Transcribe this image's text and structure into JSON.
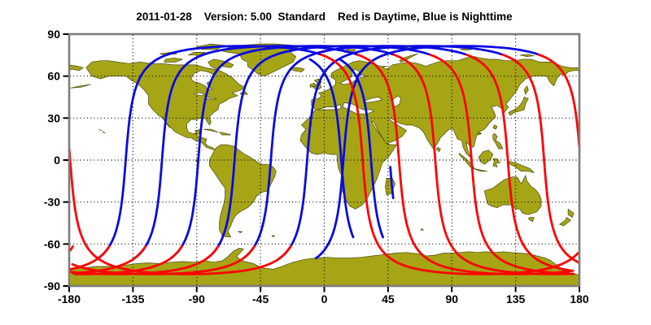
{
  "title": "2011-01-28    Version: 5.00  Standard    Red is Daytime, Blue is Nighttime",
  "header": {
    "date": "2011-01-28",
    "version_label": "Version: 5.00",
    "mode": "Standard",
    "legend_text": "Red is Daytime, Blue is Nighttime"
  },
  "colors": {
    "daytime_track": "#ff0000",
    "nighttime_track": "#0a0ae0",
    "land": "#a6a516",
    "coastline": "#4a4a10",
    "grid": "#000000",
    "frame": "#7d7d7d",
    "tick": "#000000",
    "label_text": "#000000",
    "ocean": "#ffffff"
  },
  "chart_data": {
    "type": "line",
    "title": "2011-01-28    Version: 5.00  Standard    Red is Daytime, Blue is Nighttime",
    "projection": "equirectangular lat/lon world map",
    "xlabel": "",
    "ylabel": "",
    "xlim": [
      -180,
      180
    ],
    "ylim": [
      -90,
      90
    ],
    "x_ticks": [
      -180,
      -135,
      -90,
      -45,
      0,
      45,
      90,
      135,
      180
    ],
    "y_ticks": [
      -90,
      -60,
      -30,
      0,
      30,
      60,
      90
    ],
    "grid": true,
    "legend": {
      "red": "Daytime",
      "blue": "Nighttime"
    },
    "satellite_tracks": {
      "max_latitude_deg": 81.5,
      "lon_drift_deg_per_orbit": 25.6,
      "orbits": [
        {
          "ascending_node_lon": 13.5,
          "segments": [
            {
              "phase": "night",
              "u_deg": [
                -72,
                102
              ]
            },
            {
              "phase": "day",
              "u_deg": [
                102,
                297
              ]
            }
          ]
        },
        {
          "ascending_node_lon": -12.1,
          "segments": [
            {
              "phase": "night",
              "u_deg": [
                -72,
                102
              ]
            },
            {
              "phase": "day",
              "u_deg": [
                102,
                297
              ]
            }
          ]
        },
        {
          "ascending_node_lon": -37.7,
          "segments": [
            {
              "phase": "night",
              "u_deg": [
                -72,
                102
              ]
            },
            {
              "phase": "day",
              "u_deg": [
                102,
                297
              ]
            }
          ]
        },
        {
          "ascending_node_lon": -63.3,
          "segments": [
            {
              "phase": "night",
              "u_deg": [
                -72,
                102
              ]
            },
            {
              "phase": "day",
              "u_deg": [
                102,
                297
              ]
            }
          ]
        },
        {
          "ascending_node_lon": -88.9,
          "segments": [
            {
              "phase": "night",
              "u_deg": [
                -72,
                102
              ]
            },
            {
              "phase": "day",
              "u_deg": [
                102,
                297
              ]
            }
          ]
        },
        {
          "ascending_node_lon": -114.5,
          "segments": [
            {
              "phase": "night",
              "u_deg": [
                -72,
                102
              ]
            },
            {
              "phase": "day",
              "u_deg": [
                102,
                297
              ]
            }
          ]
        },
        {
          "ascending_node_lon": -140.1,
          "segments": [
            {
              "phase": "night",
              "u_deg": [
                -72,
                102
              ]
            },
            {
              "phase": "day",
              "u_deg": [
                102,
                297
              ]
            }
          ]
        },
        {
          "ascending_node_lon": -155.2,
          "segments": [
            {
              "phase": "night",
              "u_deg": [
                106,
                236
              ]
            }
          ]
        },
        {
          "ascending_node_lon": -134.2,
          "segments": [
            {
              "phase": "night",
              "u_deg": [
                106,
                236
              ]
            }
          ]
        },
        {
          "ascending_node_lon": -121.0,
          "segments": [
            {
              "phase": "night",
              "u_deg": [
                185,
                208
              ]
            }
          ]
        }
      ]
    }
  }
}
